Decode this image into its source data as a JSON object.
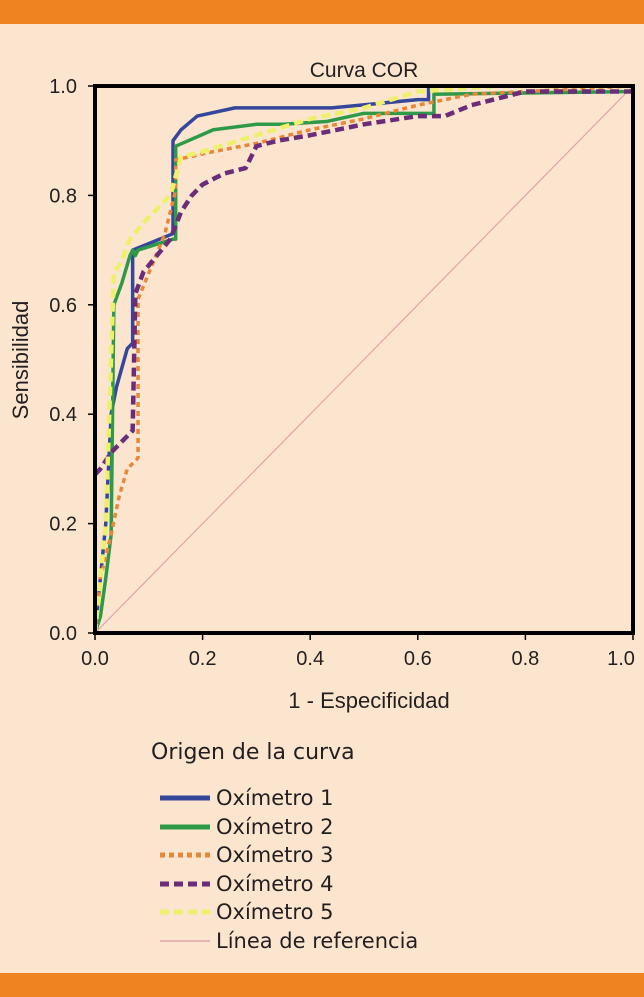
{
  "colors": {
    "background": "#fce5cf",
    "band": "#f08321",
    "axis": "#000000"
  },
  "legend_title": "Origen de la curva",
  "chart_data": {
    "type": "line",
    "title": "Curva COR",
    "xlabel": "1 - Especificidad",
    "ylabel": "Sensibilidad",
    "xlim": [
      0,
      1
    ],
    "ylim": [
      0,
      1
    ],
    "xticks": [
      "0.0",
      "0.2",
      "0.4",
      "0.6",
      "0.8",
      "1.0"
    ],
    "yticks": [
      "0.0",
      "0.2",
      "0.4",
      "0.6",
      "0.8",
      "1.0"
    ],
    "series": [
      {
        "name": "Oxímetro 1",
        "color": "#35479a",
        "style": "solid",
        "x": [
          0,
          0.005,
          0.01,
          0.02,
          0.03,
          0.04,
          0.06,
          0.07,
          0.07,
          0.145,
          0.145,
          0.16,
          0.19,
          0.26,
          0.3,
          0.44,
          0.6,
          0.62,
          0.62,
          1.0
        ],
        "y": [
          0,
          0.05,
          0.1,
          0.2,
          0.4,
          0.45,
          0.52,
          0.53,
          0.7,
          0.73,
          0.9,
          0.92,
          0.945,
          0.96,
          0.96,
          0.96,
          0.975,
          0.975,
          1.0,
          1.0
        ]
      },
      {
        "name": "Oxímetro 2",
        "color": "#2e9a48",
        "style": "solid",
        "x": [
          0,
          0.01,
          0.02,
          0.03,
          0.035,
          0.05,
          0.065,
          0.07,
          0.075,
          0.08,
          0.145,
          0.15,
          0.15,
          0.22,
          0.3,
          0.35,
          0.43,
          0.5,
          0.63,
          0.63,
          1.0
        ],
        "y": [
          0,
          0.03,
          0.1,
          0.18,
          0.6,
          0.64,
          0.69,
          0.7,
          0.69,
          0.7,
          0.72,
          0.72,
          0.89,
          0.92,
          0.93,
          0.93,
          0.935,
          0.95,
          0.95,
          0.985,
          0.99
        ]
      },
      {
        "name": "Oxímetro 3",
        "color": "#e6883a",
        "style": "dotted",
        "x": [
          0,
          0.01,
          0.03,
          0.045,
          0.06,
          0.08,
          0.08,
          0.13,
          0.15,
          0.15,
          0.22,
          0.3,
          0.4,
          0.5,
          0.6,
          0.7,
          0.8,
          1.0
        ],
        "y": [
          0,
          0.1,
          0.18,
          0.25,
          0.3,
          0.32,
          0.61,
          0.73,
          0.81,
          0.865,
          0.88,
          0.895,
          0.92,
          0.94,
          0.965,
          0.985,
          0.99,
          1.0
        ]
      },
      {
        "name": "Oxímetro 4",
        "color": "#6b2c7a",
        "style": "dashed",
        "x": [
          0,
          0.01,
          0.03,
          0.05,
          0.07,
          0.075,
          0.09,
          0.14,
          0.16,
          0.18,
          0.2,
          0.24,
          0.28,
          0.3,
          0.34,
          0.4,
          0.5,
          0.6,
          0.65,
          0.7,
          0.8,
          1.0
        ],
        "y": [
          0.29,
          0.3,
          0.33,
          0.35,
          0.37,
          0.62,
          0.66,
          0.72,
          0.77,
          0.8,
          0.82,
          0.84,
          0.85,
          0.89,
          0.9,
          0.91,
          0.93,
          0.945,
          0.945,
          0.965,
          0.99,
          0.99
        ]
      },
      {
        "name": "Oxímetro 5",
        "color": "#eef06c",
        "style": "dashed",
        "x": [
          0,
          0.01,
          0.02,
          0.035,
          0.05,
          0.06,
          0.065,
          0.09,
          0.14,
          0.16,
          0.2,
          0.3,
          0.4,
          0.5,
          0.6,
          0.75,
          1.0
        ],
        "y": [
          0,
          0.1,
          0.2,
          0.66,
          0.68,
          0.71,
          0.72,
          0.75,
          0.8,
          0.87,
          0.88,
          0.91,
          0.94,
          0.96,
          0.99,
          1.0,
          1.0
        ]
      },
      {
        "name": "Línea de referencia",
        "color": "#e0a3a9",
        "style": "thin",
        "x": [
          0,
          1
        ],
        "y": [
          0,
          1
        ]
      }
    ]
  }
}
